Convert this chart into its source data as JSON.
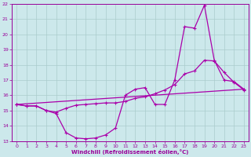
{
  "bg_color": "#cce8eb",
  "line_color": "#aa00aa",
  "grid_color": "#aacccc",
  "xlabel": "Windchill (Refroidissement éolien,°C)",
  "xlabel_color": "#990099",
  "tick_color": "#990099",
  "xlim": [
    -0.5,
    23.5
  ],
  "ylim": [
    13,
    22
  ],
  "yticks": [
    13,
    14,
    15,
    16,
    17,
    18,
    19,
    20,
    21,
    22
  ],
  "xticks": [
    0,
    1,
    2,
    3,
    4,
    5,
    6,
    7,
    8,
    9,
    10,
    11,
    12,
    13,
    14,
    15,
    16,
    17,
    18,
    19,
    20,
    21,
    22,
    23
  ],
  "line1_x": [
    0,
    1,
    2,
    3,
    4,
    5,
    6,
    7,
    8,
    9,
    10,
    11,
    12,
    13,
    14,
    15,
    16,
    17,
    18,
    19,
    20,
    21,
    22,
    23
  ],
  "line1_y": [
    15.4,
    15.3,
    15.3,
    15.0,
    14.8,
    13.55,
    13.2,
    13.15,
    13.2,
    13.4,
    13.85,
    16.0,
    16.4,
    16.5,
    15.4,
    15.4,
    17.0,
    20.5,
    20.4,
    21.9,
    18.3,
    17.0,
    16.9,
    16.4
  ],
  "line2_x": [
    0,
    1,
    2,
    3,
    4,
    5,
    6,
    7,
    8,
    9,
    10,
    11,
    12,
    13,
    14,
    15,
    16,
    17,
    18,
    19,
    20,
    21,
    22,
    23
  ],
  "line2_y": [
    15.4,
    15.3,
    15.3,
    15.0,
    14.9,
    15.15,
    15.35,
    15.4,
    15.45,
    15.5,
    15.5,
    15.6,
    15.8,
    15.9,
    16.1,
    16.35,
    16.7,
    17.4,
    17.6,
    18.3,
    18.25,
    17.5,
    16.85,
    16.35
  ],
  "line3_x": [
    0,
    23
  ],
  "line3_y": [
    15.4,
    16.4
  ]
}
